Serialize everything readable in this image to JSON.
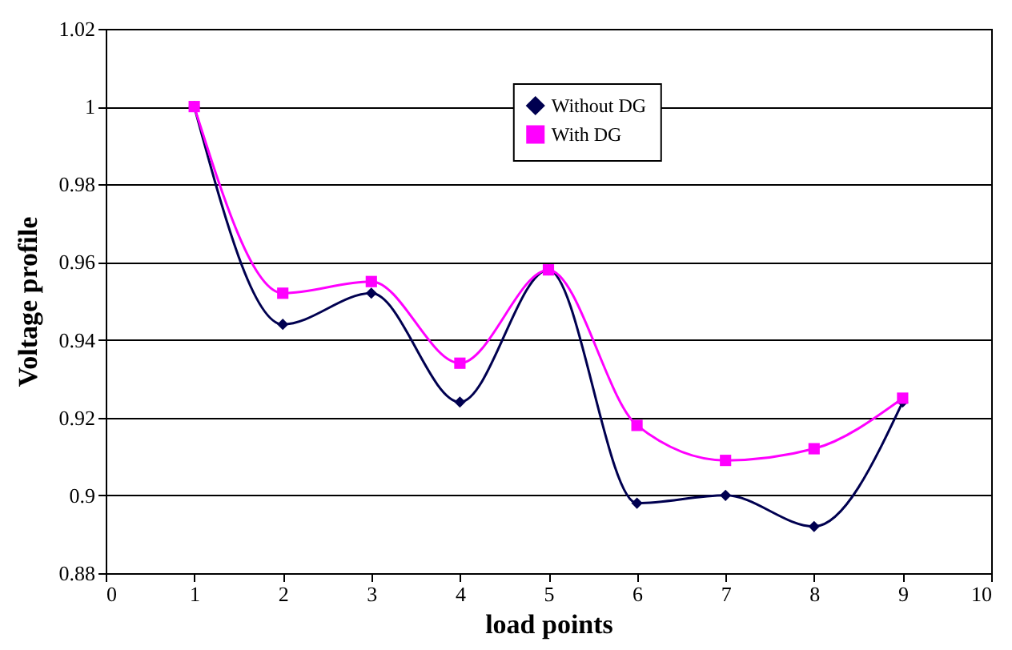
{
  "chart_data": {
    "type": "line",
    "xlabel": "load points",
    "ylabel": "Voltage profile",
    "x": [
      1,
      2,
      3,
      4,
      5,
      6,
      7,
      8,
      9
    ],
    "series": [
      {
        "name": "Without DG",
        "color": "#000050",
        "marker": "diamond",
        "values": [
          1.0,
          0.944,
          0.952,
          0.924,
          0.958,
          0.898,
          0.9,
          0.892,
          0.924
        ]
      },
      {
        "name": "With DG",
        "color": "#ff00ff",
        "marker": "square",
        "values": [
          1.0,
          0.952,
          0.955,
          0.934,
          0.958,
          0.918,
          0.909,
          0.912,
          0.925
        ]
      }
    ],
    "xlim": [
      0,
      10
    ],
    "xticks": [
      0,
      1,
      2,
      3,
      4,
      5,
      6,
      7,
      8,
      9,
      10
    ],
    "ylim": [
      0.88,
      1.02
    ],
    "yticks": [
      0.88,
      0.9,
      0.92,
      0.94,
      0.96,
      0.98,
      1,
      1.02
    ],
    "grid": "y",
    "legend": "top"
  }
}
